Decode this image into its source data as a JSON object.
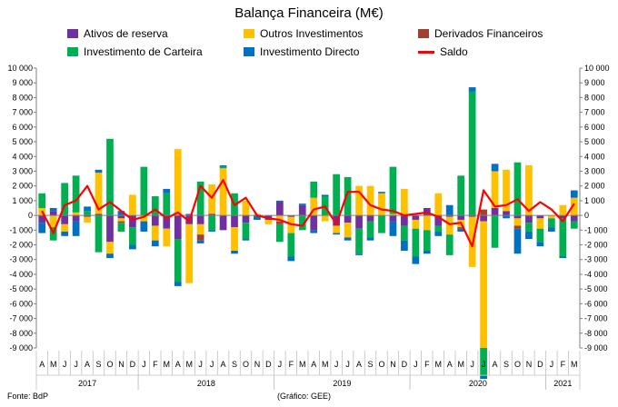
{
  "chart_data": {
    "type": "bar",
    "title": "Balança Financeira (M€)",
    "source": "Fonte: BdP",
    "credit": "(Gráfico: GEE)",
    "ylim": [
      -9000,
      10000
    ],
    "yticks": [
      "10 000",
      "9 000",
      "8 000",
      "7 000",
      "6 000",
      "5 000",
      "4 000",
      "3 000",
      "2 000",
      "1 000",
      "0",
      "-1 000",
      "-2 000",
      "-3 000",
      "-4 000",
      "-5 000",
      "-6 000",
      "-7 000",
      "-8 000",
      "-9 000"
    ],
    "yticks_right": [
      "10 000",
      "9 000",
      "8 000",
      "7 000",
      "6 000",
      "5 000",
      "4 000",
      "3 000",
      "2 000",
      "1 000",
      "0",
      "-1 000",
      "-2 000",
      "-3 000",
      "-4 000",
      "-5 000",
      "-6 000",
      "-7 000",
      "-8 000",
      "-9 000"
    ],
    "grid": false,
    "legend_position": "top",
    "categories": [
      "A",
      "M",
      "J",
      "J",
      "A",
      "S",
      "O",
      "N",
      "D",
      "J",
      "F",
      "M",
      "A",
      "M",
      "J",
      "J",
      "A",
      "S",
      "O",
      "N",
      "D",
      "J",
      "F",
      "M",
      "A",
      "M",
      "J",
      "J",
      "A",
      "S",
      "O",
      "N",
      "D",
      "J",
      "F",
      "M",
      "A",
      "M",
      "J",
      "J",
      "A",
      "S",
      "O",
      "N",
      "D",
      "J",
      "F",
      "M"
    ],
    "years": [
      {
        "label": "2017",
        "start": 0,
        "end": 8
      },
      {
        "label": "2018",
        "start": 9,
        "end": 20
      },
      {
        "label": "2019",
        "start": 21,
        "end": 32
      },
      {
        "label": "2020",
        "start": 33,
        "end": 44
      },
      {
        "label": "2021",
        "start": 45,
        "end": 47
      }
    ],
    "series": [
      {
        "name": "Ativos de reserva",
        "color": "#7030a0",
        "kind": "bar",
        "values": [
          -500,
          300,
          -600,
          -400,
          -100,
          100,
          -1800,
          -200,
          -800,
          0,
          -700,
          -900,
          -1600,
          -600,
          -600,
          100,
          -1000,
          -800,
          -500,
          0,
          -300,
          900,
          -100,
          700,
          -1000,
          0,
          -700,
          -500,
          -900,
          -400,
          0,
          -400,
          -700,
          -300,
          500,
          -700,
          -100,
          -300,
          -100,
          -400,
          500,
          300,
          -200,
          -500,
          -200,
          0,
          -200,
          -400
        ]
      },
      {
        "name": "Outros Investimentos",
        "color": "#ffc000",
        "kind": "bar",
        "values": [
          500,
          -800,
          -500,
          200,
          -400,
          2800,
          -800,
          -200,
          1400,
          -400,
          -1000,
          -1200,
          4500,
          -4000,
          -700,
          2000,
          3200,
          -1600,
          1000,
          100,
          -300,
          -400,
          -1100,
          0,
          1200,
          -400,
          -500,
          -1000,
          2000,
          2000,
          1500,
          100,
          1800,
          -600,
          -1000,
          1500,
          -1200,
          -500,
          -3400,
          -8600,
          2500,
          2800,
          -500,
          3400,
          -700,
          -200,
          700,
          1200
        ]
      },
      {
        "name": "Derivados Financeiros",
        "color": "#a04030",
        "kind": "bar",
        "values": [
          0,
          0,
          0,
          0,
          0,
          0,
          0,
          -100,
          0,
          0,
          0,
          0,
          0,
          0,
          -400,
          0,
          0,
          0,
          0,
          0,
          0,
          -200,
          0,
          0,
          0,
          0,
          0,
          0,
          0,
          0,
          0,
          0,
          0,
          0,
          0,
          0,
          0,
          -100,
          0,
          400,
          0,
          0,
          -200,
          0,
          0,
          0,
          0,
          0
        ]
      },
      {
        "name": "Investimento de Carteira",
        "color": "#00b050",
        "kind": "bar",
        "values": [
          1000,
          -900,
          2200,
          2500,
          300,
          -2500,
          5200,
          -600,
          -1200,
          3300,
          1300,
          1500,
          -2900,
          0,
          2300,
          -1000,
          100,
          1500,
          -1100,
          0,
          0,
          -1200,
          -1600,
          -1000,
          1100,
          1300,
          2800,
          2600,
          -1700,
          -1100,
          -1200,
          3200,
          -1000,
          -1900,
          -1400,
          -400,
          -1400,
          2700,
          8400,
          -1900,
          -2200,
          0,
          3600,
          -600,
          -900,
          -600,
          -2600,
          -500
        ]
      },
      {
        "name": "Investimento Directo",
        "color": "#0070c0",
        "kind": "bar",
        "values": [
          -700,
          200,
          -300,
          -1000,
          300,
          200,
          -300,
          300,
          -300,
          -700,
          -400,
          300,
          -300,
          100,
          -200,
          -100,
          100,
          -200,
          -100,
          -300,
          0,
          100,
          -300,
          100,
          -200,
          100,
          -100,
          -200,
          -100,
          -200,
          100,
          -1000,
          -700,
          -500,
          -200,
          -300,
          700,
          -200,
          300,
          -200,
          500,
          -200,
          -1700,
          -500,
          -300,
          -300,
          -100,
          500
        ]
      },
      {
        "name": "Saldo",
        "color": "#ff0000",
        "kind": "line",
        "values": [
          300,
          -1200,
          700,
          1000,
          2000,
          400,
          900,
          300,
          -300,
          -100,
          400,
          -200,
          200,
          -400,
          2000,
          1200,
          2400,
          700,
          1200,
          0,
          -200,
          -300,
          -600,
          -700,
          400,
          600,
          -600,
          1600,
          1600,
          700,
          400,
          300,
          0,
          100,
          200,
          -100,
          -600,
          -500,
          -2100,
          1700,
          600,
          700,
          1100,
          300,
          900,
          400,
          -400,
          800
        ]
      }
    ]
  }
}
